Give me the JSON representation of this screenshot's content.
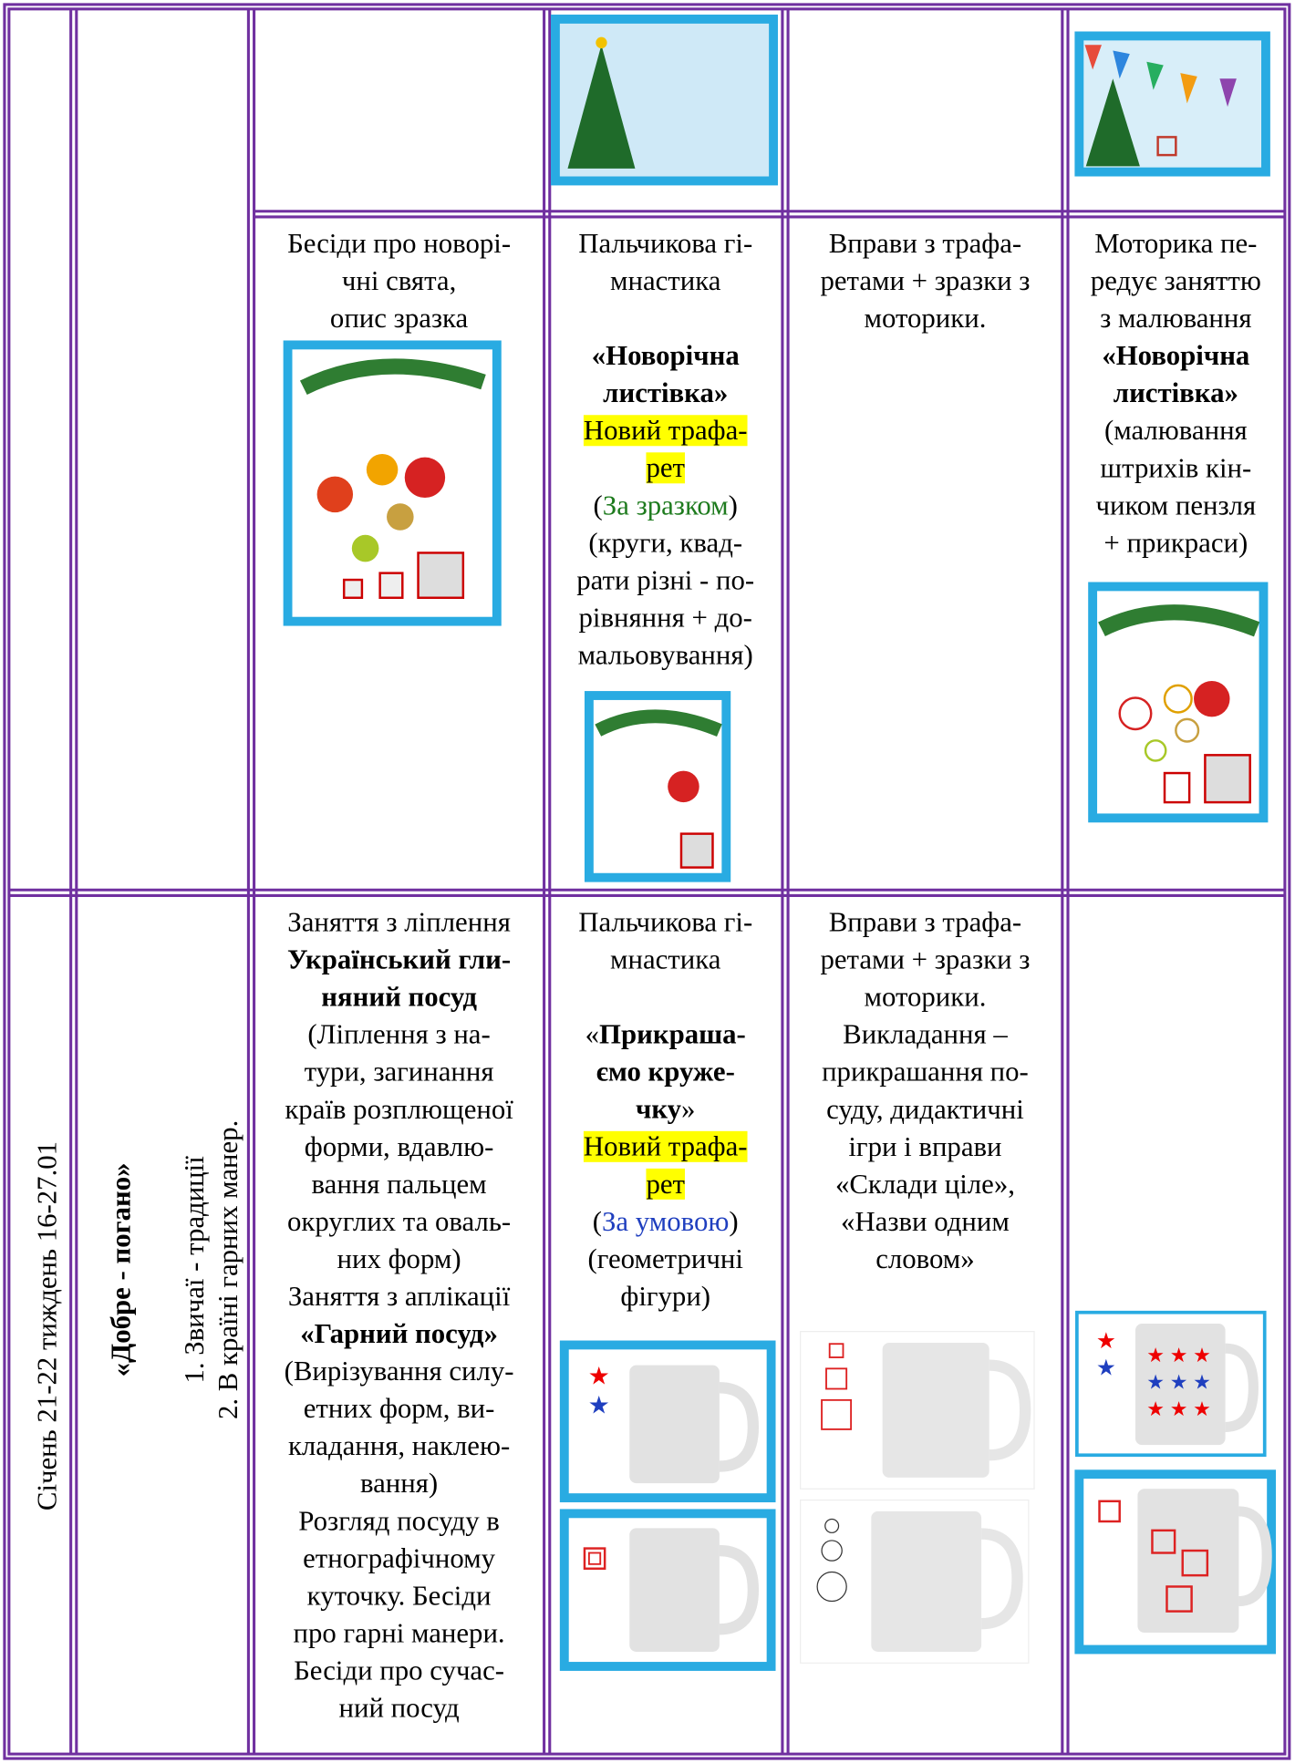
{
  "side": {
    "period": "Січень  21-22 тиждень 16-27.01",
    "theme": "«Добре -  погано»",
    "topics": [
      "1. Звичаї - традиції",
      "2. В країні гарних манер."
    ]
  },
  "table": {
    "rows": [
      {
        "cells": [
          {
            "paragraphs": [
              [
                "Бесіди про новорі-",
                "чні свята,",
                "опис зразка"
              ]
            ]
          },
          {
            "paragraphs": [
              [
                "Пальчикова гі-",
                "мнастика"
              ],
              [
                [
                  {
                    "text": "«Новорічна",
                    "style": "bold"
                  }
                ],
                [
                  {
                    "text": "листівка»",
                    "style": "bold"
                  }
                ],
                [
                  {
                    "text": "Новий трафа-",
                    "style": "highlight"
                  }
                ],
                [
                  {
                    "text": "рет",
                    "style": "highlight"
                  }
                ],
                [
                  {
                    "text": "(",
                    "style": "plain"
                  },
                  {
                    "text": "За зразком",
                    "style": "green"
                  },
                  {
                    "text": ")",
                    "style": "plain"
                  }
                ],
                "(круги, квад-",
                "рати різні  - по-",
                "рівняння + до-",
                "мальовування)"
              ]
            ]
          },
          {
            "paragraphs": [
              [
                "Вправи з трафа-",
                "ретами + зразки з",
                "моторики."
              ]
            ]
          },
          {
            "paragraphs": [
              [
                "Моторика пе-",
                "редує заняттю",
                "з малювання",
                [
                  {
                    "text": "«Новорічна",
                    "style": "bold"
                  }
                ],
                [
                  {
                    "text": "листівка»",
                    "style": "bold"
                  }
                ],
                "(малювання",
                "штрихів кін-",
                "чиком пензля",
                "+ прикраси)"
              ]
            ]
          }
        ]
      },
      {
        "cells": [
          {
            "paragraphs": [
              [
                "Заняття з ліплення",
                [
                  {
                    "text": "Український гли-",
                    "style": "bold"
                  }
                ],
                [
                  {
                    "text": "няний посуд",
                    "style": "bold"
                  }
                ],
                "(Ліплення з на-",
                "тури, загинання",
                "країв розплющеної",
                "форми, вдавлю-",
                "вання пальцем",
                "округлих та оваль-",
                "них форм)",
                "Заняття з аплікації",
                [
                  {
                    "text": "«Гарний посуд»",
                    "style": "bold"
                  }
                ],
                "(Вирізування силу-",
                "етних форм, ви-",
                "кладання, наклею-",
                "вання)",
                "Розгляд посуду в",
                "етнографічному",
                "куточку. Бесіди",
                "про гарні манери.",
                "Бесіди про сучас-",
                "ний посуд"
              ]
            ]
          },
          {
            "paragraphs": [
              [
                "Пальчикова гі-",
                "мнастика"
              ],
              [
                [
                  {
                    "text": "«",
                    "style": "plain"
                  },
                  {
                    "text": "Прикраша-",
                    "style": "bold"
                  }
                ],
                [
                  {
                    "text": "ємо круже-",
                    "style": "bold"
                  }
                ],
                [
                  {
                    "text": "чку",
                    "style": "bold"
                  },
                  {
                    "text": "»",
                    "style": "plain"
                  }
                ],
                [
                  {
                    "text": "Новий трафа-",
                    "style": "highlight"
                  }
                ],
                [
                  {
                    "text": "рет",
                    "style": "highlight"
                  }
                ],
                [
                  {
                    "text": "(",
                    "style": "plain"
                  },
                  {
                    "text": "За умовою",
                    "style": "blue"
                  },
                  {
                    "text": ")",
                    "style": "plain"
                  }
                ],
                "(геометричні",
                "фігури)"
              ]
            ]
          },
          {
            "paragraphs": [
              [
                "Вправи з трафа-",
                "ретами + зразки з",
                "моторики.",
                "Викладання –",
                "прикрашання по-",
                "суду, дидактичні",
                "ігри і вправи",
                "«Склади ціле»,",
                "«Назви одним",
                "словом»"
              ]
            ]
          },
          null
        ]
      }
    ]
  }
}
